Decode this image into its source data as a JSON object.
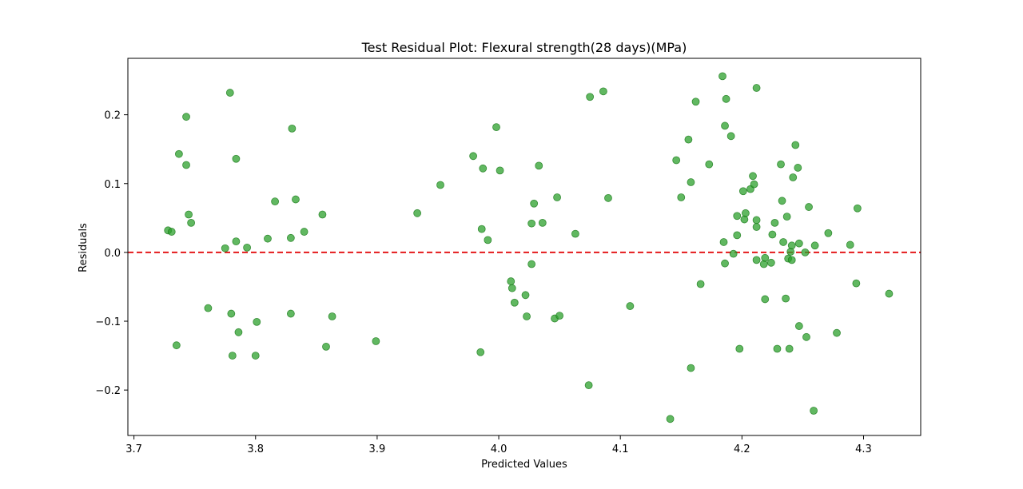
{
  "chart_data": {
    "type": "scatter",
    "title": "Test Residual Plot: Flexural strength(28 days)(MPa)",
    "xlabel": "Predicted Values",
    "ylabel": "Residuals",
    "xlim": [
      3.695,
      4.347
    ],
    "ylim": [
      -0.266,
      0.282
    ],
    "xticks": [
      3.7,
      3.8,
      3.9,
      4.0,
      4.1,
      4.2,
      4.3
    ],
    "xtick_labels": [
      "3.7",
      "3.8",
      "3.9",
      "4.0",
      "4.1",
      "4.2",
      "4.3"
    ],
    "yticks": [
      -0.2,
      -0.1,
      0.0,
      0.1,
      0.2
    ],
    "ytick_labels": [
      "−0.2",
      "−0.1",
      "0.0",
      "0.1",
      "0.2"
    ],
    "grid": false,
    "reference_line": {
      "y": 0.0,
      "color": "#e41a1c",
      "style": "dashed"
    },
    "marker_color": "#2ca02c",
    "series": [
      {
        "name": "",
        "points": [
          [
            3.728,
            0.032
          ],
          [
            3.731,
            0.03
          ],
          [
            3.735,
            -0.135
          ],
          [
            3.737,
            0.143
          ],
          [
            3.743,
            0.197
          ],
          [
            3.743,
            0.127
          ],
          [
            3.745,
            0.055
          ],
          [
            3.747,
            0.043
          ],
          [
            3.761,
            -0.081
          ],
          [
            3.775,
            0.006
          ],
          [
            3.779,
            0.232
          ],
          [
            3.78,
            -0.089
          ],
          [
            3.781,
            -0.15
          ],
          [
            3.784,
            0.016
          ],
          [
            3.784,
            0.136
          ],
          [
            3.786,
            -0.116
          ],
          [
            3.793,
            0.007
          ],
          [
            3.8,
            -0.15
          ],
          [
            3.801,
            -0.101
          ],
          [
            3.81,
            0.02
          ],
          [
            3.816,
            0.074
          ],
          [
            3.829,
            -0.089
          ],
          [
            3.829,
            0.021
          ],
          [
            3.83,
            0.18
          ],
          [
            3.833,
            0.077
          ],
          [
            3.84,
            0.03
          ],
          [
            3.855,
            0.055
          ],
          [
            3.858,
            -0.137
          ],
          [
            3.863,
            -0.093
          ],
          [
            3.899,
            -0.129
          ],
          [
            3.933,
            0.057
          ],
          [
            3.952,
            0.098
          ],
          [
            3.979,
            0.14
          ],
          [
            3.985,
            -0.145
          ],
          [
            3.986,
            0.034
          ],
          [
            3.987,
            0.122
          ],
          [
            3.991,
            0.018
          ],
          [
            3.998,
            0.182
          ],
          [
            4.001,
            0.119
          ],
          [
            4.01,
            -0.042
          ],
          [
            4.011,
            -0.052
          ],
          [
            4.013,
            -0.073
          ],
          [
            4.022,
            -0.062
          ],
          [
            4.023,
            -0.093
          ],
          [
            4.027,
            0.042
          ],
          [
            4.027,
            -0.017
          ],
          [
            4.029,
            0.071
          ],
          [
            4.033,
            0.126
          ],
          [
            4.036,
            0.043
          ],
          [
            4.046,
            -0.096
          ],
          [
            4.048,
            0.08
          ],
          [
            4.05,
            -0.092
          ],
          [
            4.063,
            0.027
          ],
          [
            4.074,
            -0.193
          ],
          [
            4.075,
            0.226
          ],
          [
            4.086,
            0.234
          ],
          [
            4.09,
            0.079
          ],
          [
            4.108,
            -0.078
          ],
          [
            4.141,
            -0.242
          ],
          [
            4.146,
            0.134
          ],
          [
            4.15,
            0.08
          ],
          [
            4.156,
            0.164
          ],
          [
            4.158,
            0.102
          ],
          [
            4.158,
            -0.168
          ],
          [
            4.162,
            0.219
          ],
          [
            4.166,
            -0.046
          ],
          [
            4.173,
            0.128
          ],
          [
            4.184,
            0.256
          ],
          [
            4.185,
            0.015
          ],
          [
            4.186,
            -0.016
          ],
          [
            4.186,
            0.184
          ],
          [
            4.187,
            0.223
          ],
          [
            4.191,
            0.169
          ],
          [
            4.193,
            -0.002
          ],
          [
            4.196,
            0.025
          ],
          [
            4.196,
            0.053
          ],
          [
            4.198,
            -0.14
          ],
          [
            4.201,
            0.089
          ],
          [
            4.202,
            0.048
          ],
          [
            4.203,
            0.057
          ],
          [
            4.207,
            0.092
          ],
          [
            4.209,
            0.111
          ],
          [
            4.21,
            0.099
          ],
          [
            4.212,
            -0.011
          ],
          [
            4.212,
            0.047
          ],
          [
            4.212,
            0.037
          ],
          [
            4.212,
            0.239
          ],
          [
            4.218,
            -0.017
          ],
          [
            4.219,
            -0.008
          ],
          [
            4.219,
            -0.068
          ],
          [
            4.224,
            -0.015
          ],
          [
            4.225,
            0.026
          ],
          [
            4.227,
            0.043
          ],
          [
            4.229,
            -0.14
          ],
          [
            4.232,
            0.128
          ],
          [
            4.233,
            0.075
          ],
          [
            4.234,
            0.015
          ],
          [
            4.236,
            -0.067
          ],
          [
            4.237,
            0.052
          ],
          [
            4.238,
            -0.009
          ],
          [
            4.239,
            -0.14
          ],
          [
            4.24,
            0.001
          ],
          [
            4.241,
            0.01
          ],
          [
            4.241,
            -0.011
          ],
          [
            4.242,
            0.109
          ],
          [
            4.244,
            0.156
          ],
          [
            4.246,
            0.123
          ],
          [
            4.247,
            0.013
          ],
          [
            4.247,
            -0.107
          ],
          [
            4.252,
            0.0
          ],
          [
            4.253,
            -0.123
          ],
          [
            4.255,
            0.066
          ],
          [
            4.259,
            -0.23
          ],
          [
            4.26,
            0.01
          ],
          [
            4.271,
            0.028
          ],
          [
            4.278,
            -0.117
          ],
          [
            4.289,
            0.011
          ],
          [
            4.294,
            -0.045
          ],
          [
            4.295,
            0.064
          ],
          [
            4.321,
            -0.06
          ]
        ]
      }
    ]
  }
}
